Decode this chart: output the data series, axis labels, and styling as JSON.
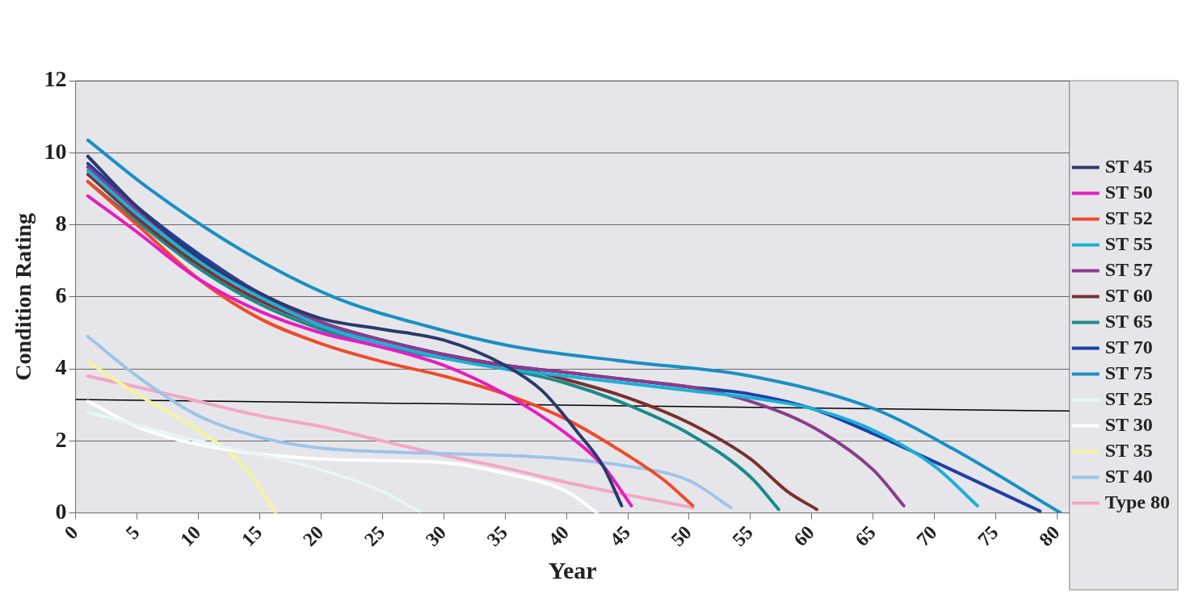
{
  "chart_data": {
    "type": "line",
    "xlabel": "Year",
    "ylabel": "Condition Rating",
    "xlim": [
      0,
      81
    ],
    "xticks": [
      0,
      5,
      10,
      15,
      20,
      25,
      30,
      35,
      40,
      45,
      50,
      55,
      60,
      65,
      70,
      75,
      80
    ],
    "ylim": [
      0,
      12
    ],
    "yticks": [
      0,
      2,
      4,
      6,
      8,
      10,
      12
    ],
    "grid": "y",
    "legend": "right",
    "marker": "none",
    "line_style": "solid",
    "series": [
      {
        "name": "ST 45",
        "color": "#2b3a6b",
        "x": [
          1,
          5,
          10,
          15,
          20,
          25,
          30,
          35,
          38,
          41,
          43,
          44.5
        ],
        "values": [
          9.9,
          8.5,
          7.1,
          6.1,
          5.4,
          5.1,
          4.8,
          4.1,
          3.4,
          2.2,
          1.3,
          0.2
        ]
      },
      {
        "name": "ST 50",
        "color": "#e81cc0",
        "x": [
          1,
          5,
          10,
          15,
          20,
          25,
          30,
          35,
          40,
          43,
          45.3
        ],
        "values": [
          8.8,
          7.8,
          6.5,
          5.6,
          5,
          4.6,
          4.1,
          3.3,
          2.2,
          1.3,
          0.2
        ]
      },
      {
        "name": "ST 52",
        "color": "#f04a2a",
        "x": [
          1,
          5,
          10,
          15,
          20,
          25,
          30,
          35,
          40,
          45,
          48,
          50.3
        ],
        "values": [
          9.2,
          8,
          6.5,
          5.4,
          4.7,
          4.2,
          3.8,
          3.3,
          2.6,
          1.6,
          0.9,
          0.2
        ]
      },
      {
        "name": "ST 55",
        "color": "#1ab0d8",
        "x": [
          1,
          5,
          10,
          15,
          20,
          25,
          30,
          35,
          40,
          45,
          50,
          55,
          60,
          65,
          70,
          73.5
        ],
        "values": [
          9.5,
          8.3,
          7,
          6,
          5.2,
          4.7,
          4.3,
          4,
          3.8,
          3.6,
          3.4,
          3.2,
          2.9,
          2.3,
          1.3,
          0.2
        ]
      },
      {
        "name": "ST 57",
        "color": "#8a3c8c",
        "x": [
          1,
          5,
          10,
          15,
          20,
          25,
          30,
          35,
          40,
          45,
          50,
          55,
          60,
          65,
          67.5
        ],
        "values": [
          9.6,
          8.4,
          7.1,
          6.1,
          5.3,
          4.8,
          4.4,
          4.1,
          3.9,
          3.7,
          3.5,
          3.1,
          2.4,
          1.2,
          0.2
        ]
      },
      {
        "name": "ST 60",
        "color": "#7a3030",
        "x": [
          1,
          5,
          10,
          15,
          20,
          25,
          30,
          35,
          40,
          45,
          50,
          55,
          58,
          60.4
        ],
        "values": [
          9.4,
          8.2,
          6.9,
          5.9,
          5.2,
          4.7,
          4.3,
          4.1,
          3.7,
          3.2,
          2.5,
          1.5,
          0.6,
          0.1
        ]
      },
      {
        "name": "ST 65",
        "color": "#1a8a8a",
        "x": [
          1,
          5,
          10,
          15,
          20,
          25,
          30,
          35,
          40,
          45,
          50,
          55,
          57.3
        ],
        "values": [
          9.2,
          8.1,
          6.8,
          5.8,
          5.1,
          4.6,
          4.3,
          4,
          3.6,
          3,
          2.2,
          1,
          0.1
        ]
      },
      {
        "name": "ST 70",
        "color": "#1f3fa8",
        "x": [
          1,
          5,
          10,
          15,
          20,
          25,
          30,
          35,
          40,
          45,
          50,
          55,
          60,
          65,
          71.4,
          78.6
        ],
        "values": [
          9.7,
          8.5,
          7.2,
          6.1,
          5.3,
          4.8,
          4.4,
          4.1,
          3.9,
          3.7,
          3.5,
          3.3,
          2.9,
          2.2,
          1.2,
          0.05
        ]
      },
      {
        "name": "ST 75",
        "color": "#1a8fc4",
        "x": [
          1,
          6,
          13.5,
          21,
          28.5,
          36,
          45,
          55,
          65,
          71.4,
          80.3
        ],
        "values": [
          10.35,
          9,
          7.3,
          6,
          5.2,
          4.6,
          4.2,
          3.8,
          2.9,
          1.8,
          0
        ]
      },
      {
        "name": "ST 25",
        "color": "#e8f4f8",
        "x": [
          1,
          10,
          20,
          25,
          28
        ],
        "values": [
          2.8,
          2,
          1.2,
          0.6,
          0.05
        ]
      },
      {
        "name": "ST 30",
        "color": "#ffffff",
        "x": [
          1,
          5,
          10,
          20,
          30,
          35,
          40,
          42.5
        ],
        "values": [
          3.1,
          2.4,
          1.9,
          1.5,
          1.4,
          1.1,
          0.6,
          0
        ]
      },
      {
        "name": "ST 35",
        "color": "#f4f4a0",
        "x": [
          1,
          5,
          10,
          14,
          16.3
        ],
        "values": [
          4.2,
          3.3,
          2.3,
          1.2,
          0
        ]
      },
      {
        "name": "ST 40",
        "color": "#9ec4ea",
        "x": [
          1,
          5,
          10,
          15,
          20,
          25,
          30,
          35,
          40,
          45,
          50,
          53.4
        ],
        "values": [
          4.9,
          3.8,
          2.7,
          2.1,
          1.8,
          1.7,
          1.65,
          1.6,
          1.5,
          1.3,
          0.9,
          0.15
        ]
      },
      {
        "name": "Type 80",
        "color": "#f4a6c8",
        "x": [
          1,
          5,
          10,
          15,
          20,
          25,
          30,
          35,
          40,
          45,
          50.3
        ],
        "values": [
          3.8,
          3.5,
          3.1,
          2.7,
          2.4,
          2,
          1.6,
          1.25,
          0.85,
          0.5,
          0.15
        ]
      },
      {
        "color": "#000000",
        "x": [
          0,
          81
        ],
        "values": [
          3.15,
          2.83
        ]
      }
    ]
  }
}
